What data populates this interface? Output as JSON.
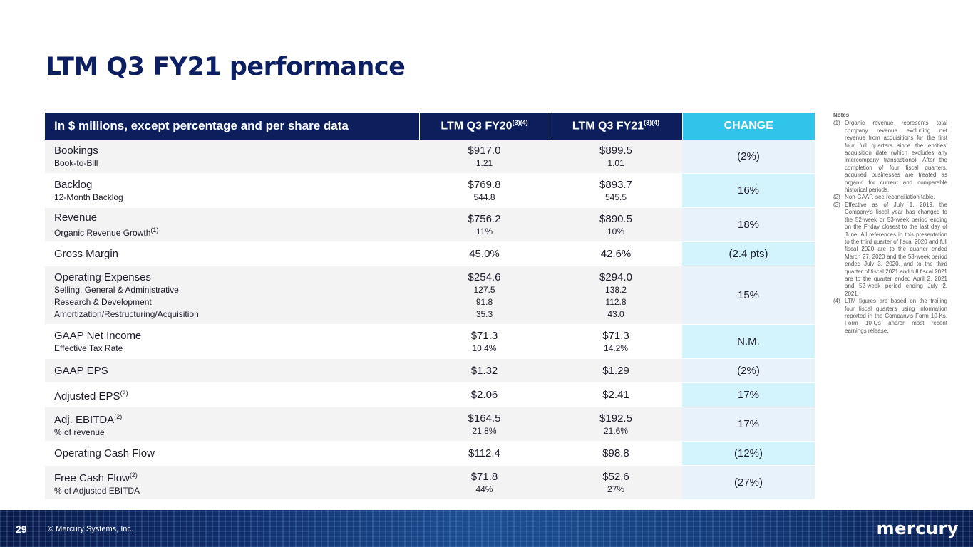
{
  "title": "LTM Q3 FY21 performance",
  "table": {
    "headers": {
      "metric": "In $ millions, except percentage and per share data",
      "fy20": "LTM Q3 FY20",
      "fy20_note": "(3)(4)",
      "fy21": "LTM Q3 FY21",
      "fy21_note": "(3)(4)",
      "change": "CHANGE"
    },
    "rows": [
      {
        "label": "Bookings",
        "sublabels": [
          "Book-to-Bill"
        ],
        "fy20": "$917.0",
        "fy20_subs": [
          "1.21"
        ],
        "fy21": "$899.5",
        "fy21_subs": [
          "1.01"
        ],
        "change": "(2%)"
      },
      {
        "label": "Backlog",
        "sublabels": [
          "12-Month Backlog"
        ],
        "fy20": "$769.8",
        "fy20_subs": [
          "544.8"
        ],
        "fy21": "$893.7",
        "fy21_subs": [
          "545.5"
        ],
        "change": "16%"
      },
      {
        "label": "Revenue",
        "sublabels": [
          "Organic Revenue Growth"
        ],
        "sublabel_note": "(1)",
        "fy20": "$756.2",
        "fy20_subs": [
          "11%"
        ],
        "fy21": "$890.5",
        "fy21_subs": [
          "10%"
        ],
        "change": "18%"
      },
      {
        "label": "Gross Margin",
        "fy20": "45.0%",
        "fy21": "42.6%",
        "change": "(2.4 pts)"
      },
      {
        "label": "Operating Expenses",
        "sublabels": [
          "Selling, General & Administrative",
          "Research & Development",
          "Amortization/Restructuring/Acquisition"
        ],
        "fy20": "$254.6",
        "fy20_subs": [
          "127.5",
          "91.8",
          "35.3"
        ],
        "fy21": "$294.0",
        "fy21_subs": [
          "138.2",
          "112.8",
          "43.0"
        ],
        "change": "15%"
      },
      {
        "label": "GAAP Net Income",
        "sublabels": [
          "Effective Tax Rate"
        ],
        "fy20": "$71.3",
        "fy20_subs": [
          "10.4%"
        ],
        "fy21": "$71.3",
        "fy21_subs": [
          "14.2%"
        ],
        "change": "N.M."
      },
      {
        "label": "GAAP EPS",
        "fy20": "$1.32",
        "fy21": "$1.29",
        "change": "(2%)"
      },
      {
        "label": "Adjusted EPS",
        "label_note": "(2)",
        "fy20": "$2.06",
        "fy21": "$2.41",
        "change": "17%"
      },
      {
        "label": "Adj. EBITDA",
        "label_note": "(2)",
        "sublabels": [
          "% of revenue"
        ],
        "fy20": "$164.5",
        "fy20_subs": [
          "21.8%"
        ],
        "fy21": "$192.5",
        "fy21_subs": [
          "21.6%"
        ],
        "change": "17%"
      },
      {
        "label": "Operating Cash Flow",
        "fy20": "$112.4",
        "fy21": "$98.8",
        "change": "(12%)"
      },
      {
        "label": "Free Cash Flow",
        "label_note": "(2)",
        "sublabels": [
          "% of Adjusted EBITDA"
        ],
        "fy20": "$71.8",
        "fy20_subs": [
          "44%"
        ],
        "fy21": "$52.6",
        "fy21_subs": [
          "27%"
        ],
        "change": "(27%)"
      }
    ]
  },
  "notes": {
    "title": "Notes",
    "items": [
      {
        "num": "(1)",
        "text": "Organic revenue represents total company revenue excluding net revenue from acquisitions for the first four full quarters since the entities’ acquisition date (which excludes any intercompany transactions). After the completion of four fiscal quarters, acquired businesses are treated as organic for current and comparable historical periods."
      },
      {
        "num": "(2)",
        "text": "Non-GAAP, see reconciliation table."
      },
      {
        "num": "(3)",
        "text": "Effective as of July 1, 2019, the Company's fiscal year has changed to the 52-week or 53-week period ending on the Friday closest to the last day of June. All references in this presentation to the third quarter of fiscal 2020 and full fiscal 2020 are to the quarter ended March 27, 2020 and the 53-week period ended July 3, 2020, and to the third quarter of fiscal 2021 and full fiscal 2021 are to the quarter ended April 2, 2021 and 52-week period ending July 2, 2021."
      },
      {
        "num": "(4)",
        "text": "LTM figures are based on the trailing four fiscal quarters using information reported in the Company's Form 10-Ks, Form 10-Qs and/or most recent earnings release."
      }
    ]
  },
  "footer": {
    "page_number": "29",
    "copyright": "© Mercury Systems, Inc.",
    "logo_text": "mercury"
  },
  "colors": {
    "title": "#0d1f63",
    "header_bg": "#0c1f5c",
    "change_header_bg": "#31c4ea",
    "change_cell_light": "#e8f2fa",
    "change_cell_cyan": "#d3f3fd"
  }
}
